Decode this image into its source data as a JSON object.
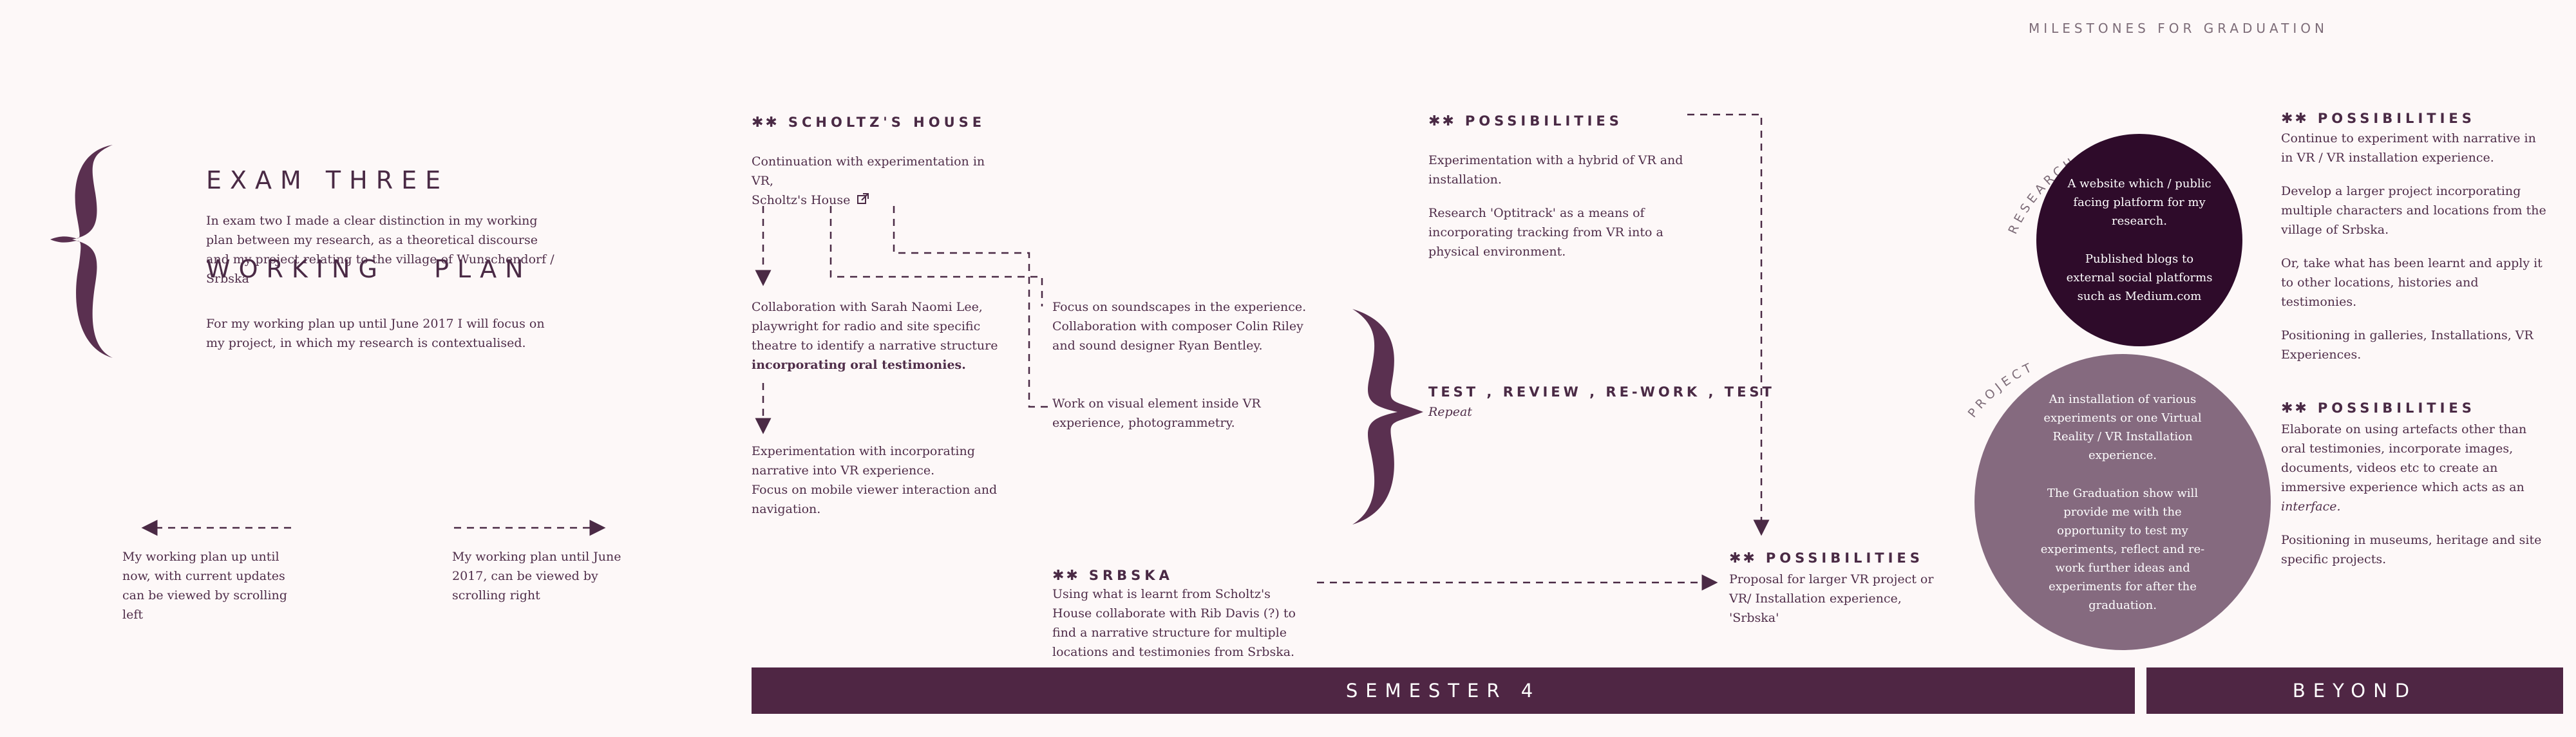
{
  "header": {
    "milestones": "MILESTONES FOR GRADUATION"
  },
  "title": {
    "line1": "EXAM THREE",
    "line2": "WORKING   PLAN"
  },
  "intro": {
    "p1": "In exam two I made a clear distinction in my working plan between my research, as a theoretical discourse and my project relating to the village of Wunschendorf / Srbska",
    "p2": "For my working plan up until June 2017 I will focus on my project, in which my research is contextualised."
  },
  "nav": {
    "left_text": "My working plan up until now, with current updates can be viewed by scrolling left",
    "right_text": "My working plan until June 2017, can be viewed by scrolling right"
  },
  "scholtz": {
    "stars": "✱✱",
    "heading": "SCHOLTZ'S HOUSE",
    "text_line1": "Continuation with experimentation in VR,",
    "link": "Scholtz's House"
  },
  "collab_sarah": {
    "text": "Collaboration with Sarah Naomi Lee, playwright for radio and site specific theatre to identify a narrative structure ",
    "bold": "incorporating oral testimonies."
  },
  "experiment_narrative": {
    "p1": "Experimentation with incorporating narrative into VR experience.",
    "p2": "Focus on mobile viewer interaction and navigation."
  },
  "soundscapes": {
    "p1": "Focus on soundscapes in the experience.",
    "p2": "Collaboration with composer Colin Riley and sound designer Ryan Bentley."
  },
  "visual_element": {
    "text": "Work on visual element inside VR experience, photogrammetry."
  },
  "srbska": {
    "stars": "✱✱",
    "heading": "SRBSKA",
    "text": "Using what is learnt from Scholtz's House collaborate with Rib Davis (?) to find a narrative structure for multiple locations and testimonies from Srbska."
  },
  "possibilities_1": {
    "stars": "✱✱",
    "heading": "POSSIBILITIES",
    "p1": "Experimentation with a hybrid of VR and installation.",
    "p2": "Research 'Optitrack' as a means of incorporating tracking from VR into a physical environment."
  },
  "test_review": {
    "heading": "TEST , REVIEW , RE-WORK , TEST",
    "sub": "Repeat"
  },
  "possibilities_2": {
    "stars": "✱✱",
    "heading": "POSSIBILITIES",
    "text": "Proposal for larger VR project or VR/ Installation experience, 'Srbska'"
  },
  "research_circle": {
    "label": "RESEARCH",
    "p1": "A website which / public facing platform for my research.",
    "p2": "Published blogs to external social platforms such as Medium.com",
    "color": "#2e0b2a"
  },
  "project_circle": {
    "label": "PROJECT",
    "p1": "An installation of various experiments or one Virtual Reality  / VR Installation experience.",
    "p2": "The Graduation show will provide me with the opportunity to test my experiments, reflect and re-work further ideas and experiments for after the graduation.",
    "color": "#856a7f"
  },
  "possibilities_3": {
    "stars": "✱✱",
    "heading": "POSSIBILITIES",
    "p1": "Continue to experiment with narrative in in VR / VR installation experience.",
    "p2": "Develop a larger project incorporating multiple characters and locations from the village of Srbska.",
    "p3": "Or, take what has been learnt and apply it to other locations, histories and testimonies.",
    "p4": "Positioning in galleries, Installations, VR Experiences."
  },
  "possibilities_4": {
    "stars": "✱✱",
    "heading": "POSSIBILITIES",
    "p1_a": "Elaborate on using artefacts other than oral testimonies, incorporate images, documents, videos etc to create an immersive experience which acts as an ",
    "p1_em": "interface.",
    "p2": "Positioning in museums, heritage and site specific projects."
  },
  "bars": {
    "semester": "SEMESTER   4",
    "beyond": "BEYOND"
  },
  "colors": {
    "accent": "#4f2644",
    "brace": "#5a3050",
    "dash": "#4a2a45"
  }
}
